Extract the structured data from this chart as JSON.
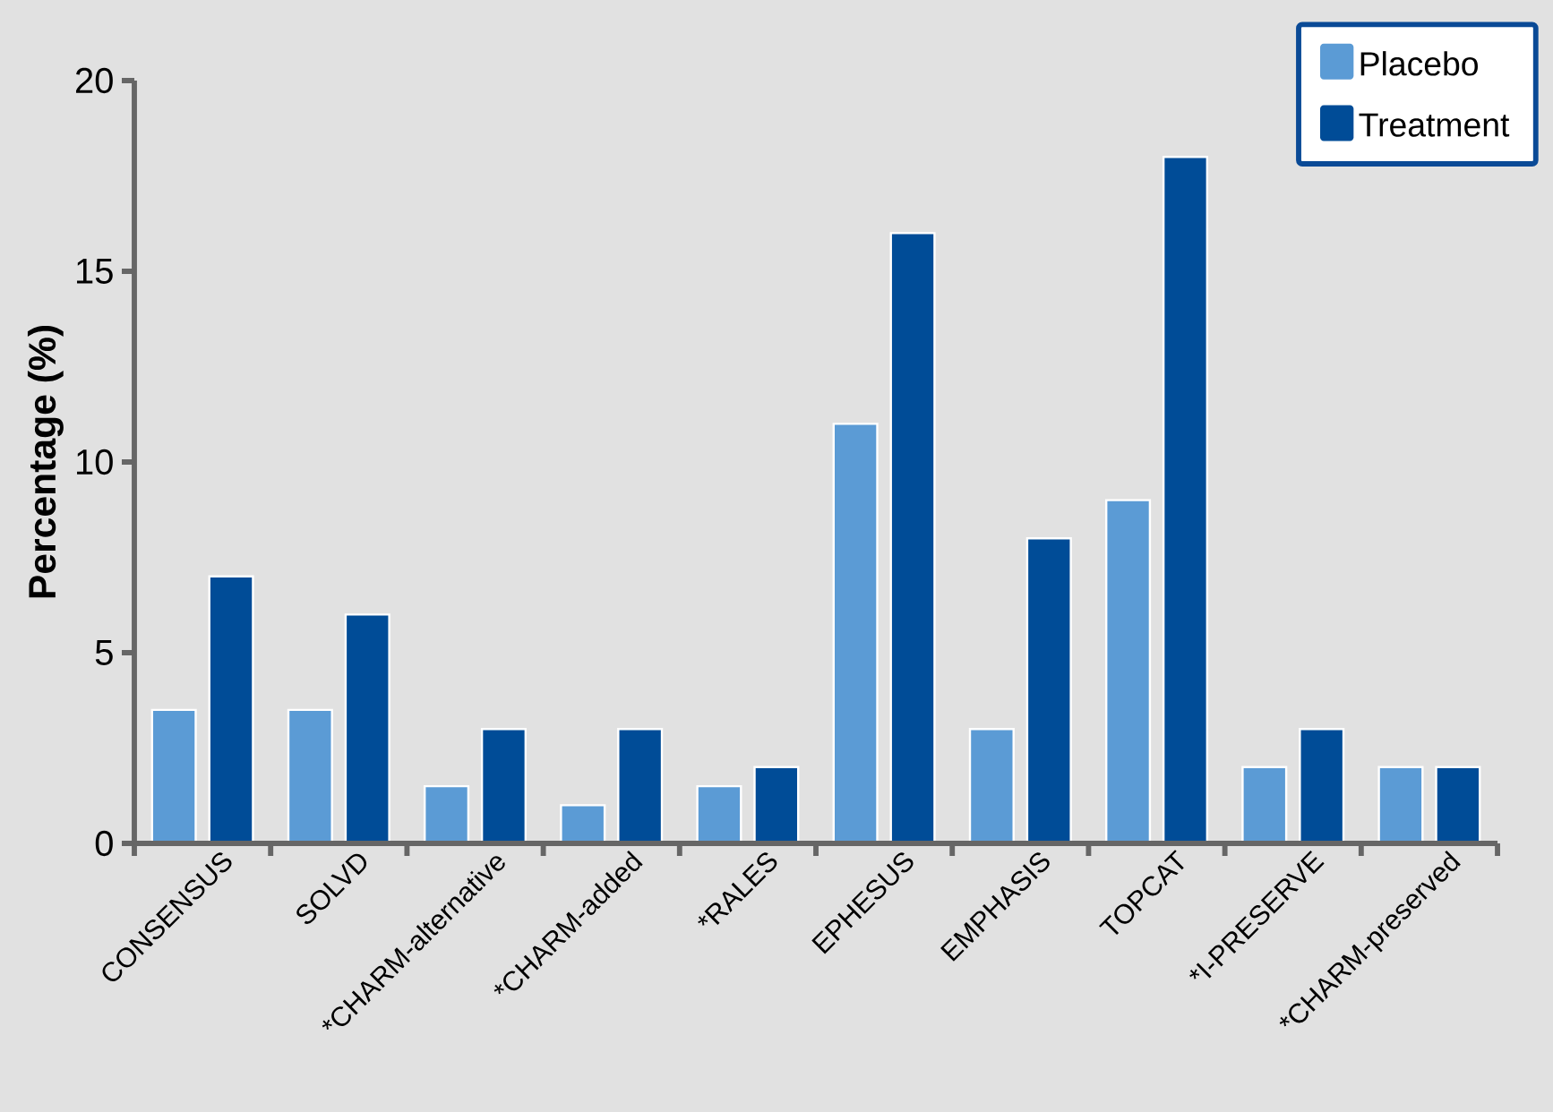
{
  "chart_data": {
    "type": "bar",
    "ylabel": "Percentage (%)",
    "categories": [
      "CONSENSUS",
      "SOLVD",
      "*CHARM-alternative",
      "*CHARM-added",
      "*RALES",
      "EPHESUS",
      "EMPHASIS",
      "TOPCAT",
      "*I-PRESERVE",
      "*CHARM-preserved"
    ],
    "series": [
      {
        "name": "Placebo",
        "color": "#5b9bd5",
        "values": [
          3.5,
          3.5,
          1.5,
          1,
          1.5,
          11,
          3,
          9,
          2,
          2
        ]
      },
      {
        "name": "Treatment",
        "color": "#004c97",
        "values": [
          7,
          6,
          3,
          3,
          2,
          16,
          8,
          18,
          3,
          2
        ]
      }
    ],
    "ylim": [
      0,
      20
    ],
    "yticks": [
      0,
      5,
      10,
      15,
      20
    ],
    "legend": "top right"
  }
}
